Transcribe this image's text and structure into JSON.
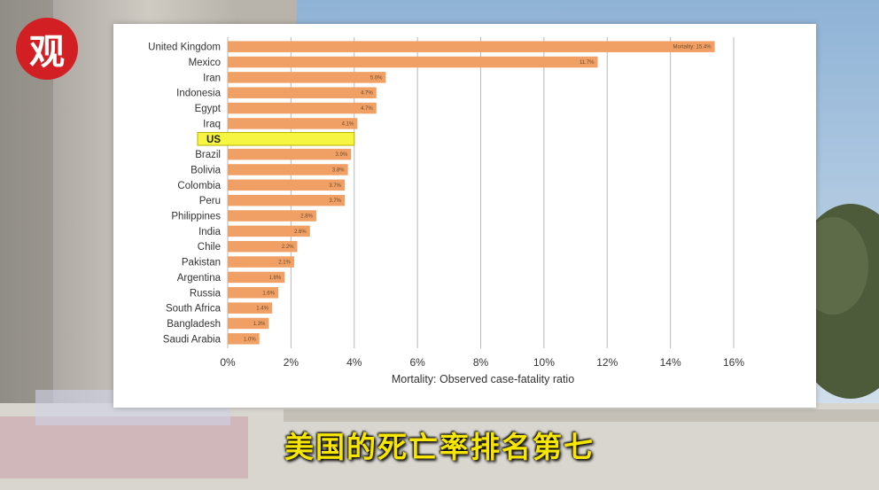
{
  "logo": {
    "text": "观"
  },
  "subtitle": "美国的死亡率排名第七",
  "colors": {
    "bar": "#f0a064",
    "highlight_fill": "#f6f542",
    "highlight_border": "#b8b000",
    "grid": "#b8b8b8"
  },
  "chart_data": {
    "type": "bar",
    "orientation": "horizontal",
    "xlabel": "Mortality: Observed case-fatality ratio",
    "xlim": [
      0,
      16
    ],
    "xticks": [
      "0%",
      "2%",
      "4%",
      "6%",
      "8%",
      "10%",
      "12%",
      "14%",
      "16%"
    ],
    "grid": true,
    "highlight_category": "US",
    "categories": [
      "United Kingdom",
      "Mexico",
      "Iran",
      "Indonesia",
      "Egypt",
      "Iraq",
      "US",
      "Brazil",
      "Bolivia",
      "Colombia",
      "Peru",
      "Philippines",
      "India",
      "Chile",
      "Pakistan",
      "Argentina",
      "Russia",
      "South Africa",
      "Bangladesh",
      "Saudi Arabia"
    ],
    "values": [
      15.4,
      11.7,
      5.0,
      4.7,
      4.7,
      4.1,
      4.0,
      3.9,
      3.8,
      3.7,
      3.7,
      2.8,
      2.6,
      2.2,
      2.1,
      1.8,
      1.6,
      1.4,
      1.3,
      1.0
    ],
    "data_labels": [
      "Mortality: 15.4%",
      "11.7%",
      "5.0%",
      "4.7%",
      "4.7%",
      "4.1%",
      "",
      "3.9%",
      "3.8%",
      "3.7%",
      "3.7%",
      "2.8%",
      "2.6%",
      "2.2%",
      "2.1%",
      "1.8%",
      "1.6%",
      "1.4%",
      "1.3%",
      "1.0%"
    ]
  }
}
